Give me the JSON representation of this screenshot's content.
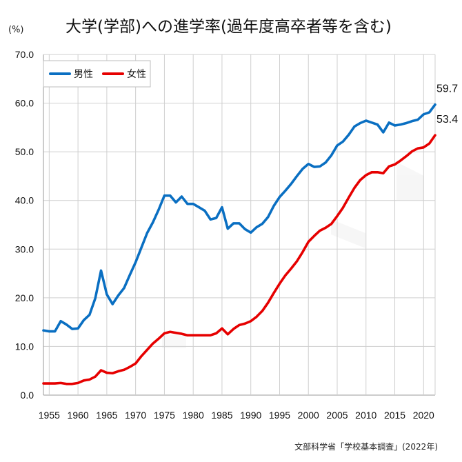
{
  "chart_data": {
    "type": "line",
    "title": "大学(学部)への進学率(過年度高卒者等を含む)",
    "ylabel": "(%)",
    "source": "文部科学省「学校基本調査」(2022年)",
    "ylim": [
      0,
      70
    ],
    "yticks": [
      "0.0",
      "10.0",
      "20.0",
      "30.0",
      "40.0",
      "50.0",
      "60.0",
      "70.0"
    ],
    "xlim": [
      1954,
      2022
    ],
    "xticks": [
      1955,
      1960,
      1965,
      1970,
      1975,
      1980,
      1985,
      1990,
      1995,
      2000,
      2005,
      2010,
      2015,
      2020
    ],
    "grid": true,
    "legend_position": "top-left",
    "x": [
      1954,
      1955,
      1956,
      1957,
      1958,
      1959,
      1960,
      1961,
      1962,
      1963,
      1964,
      1965,
      1966,
      1967,
      1968,
      1969,
      1970,
      1971,
      1972,
      1973,
      1974,
      1975,
      1976,
      1977,
      1978,
      1979,
      1980,
      1981,
      1982,
      1983,
      1984,
      1985,
      1986,
      1987,
      1988,
      1989,
      1990,
      1991,
      1992,
      1993,
      1994,
      1995,
      1996,
      1997,
      1998,
      1999,
      2000,
      2001,
      2002,
      2003,
      2004,
      2005,
      2006,
      2007,
      2008,
      2009,
      2010,
      2011,
      2012,
      2013,
      2014,
      2015,
      2016,
      2017,
      2018,
      2019,
      2020,
      2021,
      2022
    ],
    "series": [
      {
        "name": "男性",
        "color": "#0a6fc2",
        "end_label": "59.7",
        "values": [
          13.3,
          13.1,
          13.1,
          15.2,
          14.5,
          13.6,
          13.7,
          15.4,
          16.5,
          19.9,
          25.6,
          20.7,
          18.7,
          20.5,
          22.0,
          24.7,
          27.3,
          30.3,
          33.3,
          35.5,
          38.1,
          41.0,
          41.0,
          39.6,
          40.8,
          39.3,
          39.3,
          38.6,
          37.9,
          36.1,
          36.4,
          38.6,
          34.2,
          35.3,
          35.3,
          34.1,
          33.4,
          34.5,
          35.2,
          36.6,
          38.9,
          40.7,
          42.0,
          43.4,
          45.0,
          46.5,
          47.5,
          46.9,
          47.0,
          47.8,
          49.3,
          51.3,
          52.1,
          53.5,
          55.2,
          55.9,
          56.4,
          56.0,
          55.6,
          54.0,
          56.0,
          55.4,
          55.6,
          55.9,
          56.3,
          56.6,
          57.7,
          58.1,
          59.7
        ]
      },
      {
        "name": "女性",
        "color": "#e60000",
        "end_label": "53.4",
        "values": [
          2.4,
          2.4,
          2.4,
          2.5,
          2.3,
          2.3,
          2.5,
          3.0,
          3.2,
          3.8,
          5.1,
          4.6,
          4.5,
          4.9,
          5.2,
          5.8,
          6.5,
          8.0,
          9.3,
          10.6,
          11.6,
          12.7,
          13.0,
          12.8,
          12.6,
          12.3,
          12.3,
          12.3,
          12.3,
          12.3,
          12.7,
          13.7,
          12.5,
          13.6,
          14.4,
          14.7,
          15.2,
          16.1,
          17.3,
          19.0,
          21.0,
          22.9,
          24.6,
          26.0,
          27.5,
          29.4,
          31.5,
          32.7,
          33.8,
          34.4,
          35.2,
          36.8,
          38.5,
          40.6,
          42.6,
          44.2,
          45.2,
          45.8,
          45.8,
          45.6,
          47.0,
          47.4,
          48.2,
          49.1,
          50.1,
          50.7,
          50.9,
          51.7,
          53.4
        ]
      }
    ]
  }
}
